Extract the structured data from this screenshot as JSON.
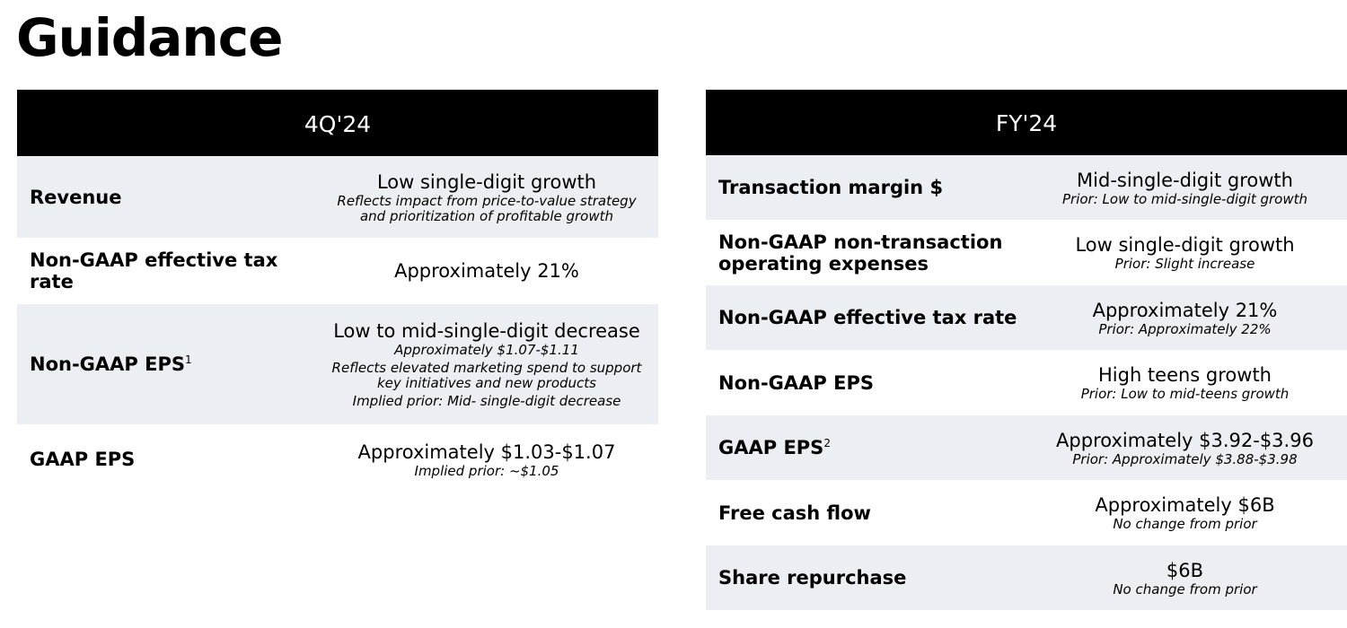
{
  "title": "Guidance",
  "quarter_panel": {
    "header": "4Q'24",
    "rows": [
      {
        "label": "Revenue",
        "value": "Low single-digit growth",
        "notes": [
          "Reflects impact from price-to-value strategy",
          "and prioritization of profitable growth"
        ]
      },
      {
        "label": "Non-GAAP effective tax rate",
        "value": "Approximately 21%"
      },
      {
        "label": "Non-GAAP EPS",
        "footnote": "1",
        "value": "Low to mid-single-digit decrease",
        "notes": [
          "Approximately $1.07-$1.11",
          "Reflects elevated marketing spend to support",
          "key initiatives and new products",
          "Implied prior: Mid- single-digit decrease"
        ]
      },
      {
        "label": "GAAP EPS",
        "value": "Approximately $1.03-$1.07",
        "notes": [
          "Implied prior: ~$1.05"
        ]
      }
    ]
  },
  "year_panel": {
    "header": "FY'24",
    "rows": [
      {
        "label": "Transaction margin $",
        "value": "Mid-single-digit growth",
        "notes": [
          "Prior: Low to mid-single-digit growth"
        ]
      },
      {
        "label_lines": [
          "Non-GAAP non-transaction",
          "operating expenses"
        ],
        "value": "Low single-digit growth",
        "notes": [
          "Prior: Slight increase"
        ]
      },
      {
        "label": "Non-GAAP effective tax rate",
        "value": "Approximately 21%",
        "notes": [
          "Prior: Approximately 22%"
        ]
      },
      {
        "label": "Non-GAAP EPS",
        "value": "High teens growth",
        "notes": [
          "Prior: Low to mid-teens growth"
        ]
      },
      {
        "label": "GAAP EPS",
        "footnote": "2",
        "value": "Approximately $3.92-$3.96",
        "notes": [
          "Prior: Approximately $3.88-$3.98"
        ]
      },
      {
        "label": "Free cash flow",
        "value": "Approximately $6B",
        "notes": [
          "No change from prior"
        ]
      },
      {
        "label": "Share repurchase",
        "value": "$6B",
        "notes": [
          "No change from prior"
        ]
      }
    ]
  }
}
